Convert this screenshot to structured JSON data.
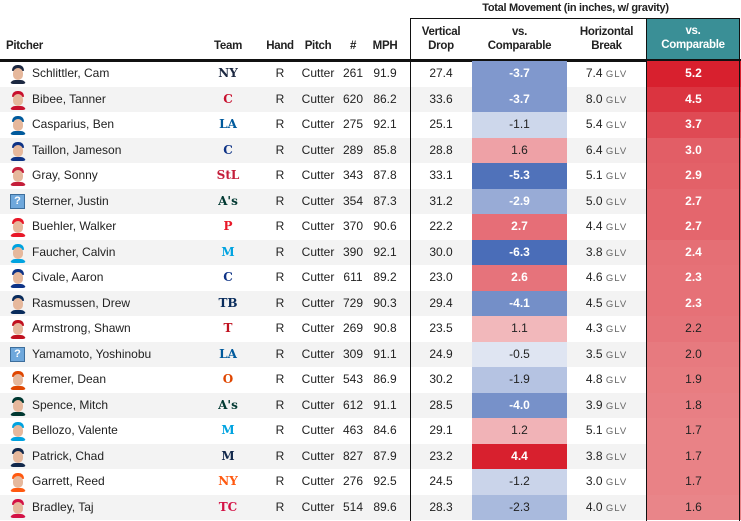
{
  "header": {
    "group_title": "Total Movement (in inches, w/ gravity)",
    "pitcher": "Pitcher",
    "team": "Team",
    "hand": "Hand",
    "pitch": "Pitch",
    "count": "#",
    "mph": "MPH",
    "vdrop": [
      "Vertical",
      "Drop"
    ],
    "vcomp": [
      "vs.",
      "Comparable"
    ],
    "hbreak": [
      "Horizontal",
      "Break"
    ],
    "hcomp": [
      "vs.",
      "Comparable"
    ]
  },
  "unit_label": "GLV",
  "colors": {
    "teal": "#3a8f96",
    "blue": "#4a6db8",
    "red": "#d8202e"
  },
  "rows": [
    {
      "name": "Schlittler, Cam",
      "team": "NYY",
      "logo": "NY",
      "lc": "#1c2841",
      "photo": true,
      "hand": "R",
      "pitch": "Cutter",
      "n": "261",
      "mph": "91.9",
      "vd": "27.4",
      "vc": -3.7,
      "hb": "7.4",
      "hc": 5.2
    },
    {
      "name": "Bibee, Tanner",
      "team": "CLE",
      "logo": "C",
      "lc": "#c8102e",
      "photo": true,
      "hand": "R",
      "pitch": "Cutter",
      "n": "620",
      "mph": "86.2",
      "vd": "33.6",
      "vc": -3.7,
      "hb": "8.0",
      "hc": 4.5
    },
    {
      "name": "Casparius, Ben",
      "team": "LAD",
      "logo": "LA",
      "lc": "#005a9c",
      "photo": true,
      "hand": "R",
      "pitch": "Cutter",
      "n": "275",
      "mph": "92.1",
      "vd": "25.1",
      "vc": -1.1,
      "hb": "5.4",
      "hc": 3.7
    },
    {
      "name": "Taillon, Jameson",
      "team": "CHC",
      "logo": "C",
      "lc": "#0e3386",
      "photo": true,
      "hand": "R",
      "pitch": "Cutter",
      "n": "289",
      "mph": "85.8",
      "vd": "28.8",
      "vc": 1.6,
      "hb": "6.4",
      "hc": 3.0
    },
    {
      "name": "Gray, Sonny",
      "team": "STL",
      "logo": "StL",
      "lc": "#c41e3a",
      "photo": true,
      "hand": "R",
      "pitch": "Cutter",
      "n": "343",
      "mph": "87.8",
      "vd": "33.1",
      "vc": -5.3,
      "hb": "5.1",
      "hc": 2.9
    },
    {
      "name": "Sterner, Justin",
      "team": "ATH",
      "logo": "A's",
      "lc": "#003831",
      "photo": false,
      "hand": "R",
      "pitch": "Cutter",
      "n": "354",
      "mph": "87.3",
      "vd": "31.2",
      "vc": -2.9,
      "hb": "5.0",
      "hc": 2.7
    },
    {
      "name": "Buehler, Walker",
      "team": "PHI",
      "logo": "P",
      "lc": "#e81828",
      "photo": true,
      "hand": "R",
      "pitch": "Cutter",
      "n": "370",
      "mph": "90.6",
      "vd": "22.2",
      "vc": 2.7,
      "hb": "4.4",
      "hc": 2.7
    },
    {
      "name": "Faucher, Calvin",
      "team": "MIA",
      "logo": "M",
      "lc": "#00a3e0",
      "photo": true,
      "hand": "R",
      "pitch": "Cutter",
      "n": "390",
      "mph": "92.1",
      "vd": "30.0",
      "vc": -6.3,
      "hb": "3.8",
      "hc": 2.4
    },
    {
      "name": "Civale, Aaron",
      "team": "CHC",
      "logo": "C",
      "lc": "#0e3386",
      "photo": true,
      "hand": "R",
      "pitch": "Cutter",
      "n": "611",
      "mph": "89.2",
      "vd": "23.0",
      "vc": 2.6,
      "hb": "4.6",
      "hc": 2.3
    },
    {
      "name": "Rasmussen, Drew",
      "team": "TB",
      "logo": "TB",
      "lc": "#092c5c",
      "photo": true,
      "hand": "R",
      "pitch": "Cutter",
      "n": "729",
      "mph": "90.3",
      "vd": "29.4",
      "vc": -4.1,
      "hb": "4.5",
      "hc": 2.3
    },
    {
      "name": "Armstrong, Shawn",
      "team": "TEX",
      "logo": "T",
      "lc": "#c0111f",
      "photo": true,
      "hand": "R",
      "pitch": "Cutter",
      "n": "269",
      "mph": "90.8",
      "vd": "23.5",
      "vc": 1.1,
      "hb": "4.3",
      "hc": 2.2
    },
    {
      "name": "Yamamoto, Yoshinobu",
      "team": "LAD",
      "logo": "LA",
      "lc": "#005a9c",
      "photo": false,
      "hand": "R",
      "pitch": "Cutter",
      "n": "309",
      "mph": "91.1",
      "vd": "24.9",
      "vc": -0.5,
      "hb": "3.5",
      "hc": 2.0
    },
    {
      "name": "Kremer, Dean",
      "team": "BAL",
      "logo": "O",
      "lc": "#df4601",
      "photo": true,
      "hand": "R",
      "pitch": "Cutter",
      "n": "543",
      "mph": "86.9",
      "vd": "30.2",
      "vc": -1.9,
      "hb": "4.8",
      "hc": 1.9
    },
    {
      "name": "Spence, Mitch",
      "team": "ATH",
      "logo": "A's",
      "lc": "#003831",
      "photo": true,
      "hand": "R",
      "pitch": "Cutter",
      "n": "612",
      "mph": "91.1",
      "vd": "28.5",
      "vc": -4.0,
      "hb": "3.9",
      "hc": 1.8
    },
    {
      "name": "Bellozo, Valente",
      "team": "MIA",
      "logo": "M",
      "lc": "#00a3e0",
      "photo": true,
      "hand": "R",
      "pitch": "Cutter",
      "n": "463",
      "mph": "84.6",
      "vd": "29.1",
      "vc": 1.2,
      "hb": "5.1",
      "hc": 1.7
    },
    {
      "name": "Patrick, Chad",
      "team": "MIL",
      "logo": "M",
      "lc": "#12284b",
      "photo": true,
      "hand": "R",
      "pitch": "Cutter",
      "n": "827",
      "mph": "87.9",
      "vd": "23.2",
      "vc": 4.4,
      "hb": "3.8",
      "hc": 1.7
    },
    {
      "name": "Garrett, Reed",
      "team": "NYM",
      "logo": "NY",
      "lc": "#ff5910",
      "photo": true,
      "hand": "R",
      "pitch": "Cutter",
      "n": "276",
      "mph": "92.5",
      "vd": "24.5",
      "vc": -1.2,
      "hb": "3.0",
      "hc": 1.7
    },
    {
      "name": "Bradley, Taj",
      "team": "MIN",
      "logo": "TC",
      "lc": "#d31145",
      "photo": true,
      "hand": "R",
      "pitch": "Cutter",
      "n": "514",
      "mph": "89.6",
      "vd": "28.3",
      "vc": -2.3,
      "hb": "4.0",
      "hc": 1.6
    }
  ]
}
